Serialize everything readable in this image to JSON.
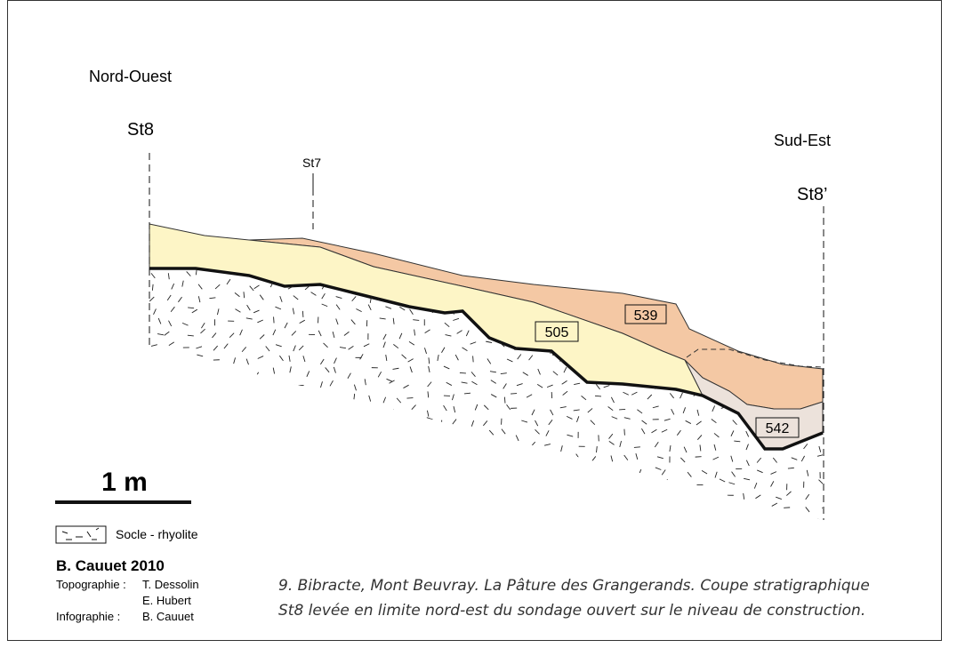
{
  "orientation": {
    "left": "Nord-Ouest",
    "right": "Sud-Est"
  },
  "stations": {
    "left": "St8",
    "middle": "St7",
    "right": "St8’"
  },
  "layers": {
    "l505": "505",
    "l539": "539",
    "l542": "542"
  },
  "scale": "1 m",
  "legend": {
    "label": "Socle - rhyolite"
  },
  "credits": {
    "author": "B. Cauuet 2010",
    "lines": [
      {
        "role": "Topographie :",
        "name": "T. Dessolin"
      },
      {
        "name": "E. Hubert"
      },
      {
        "role": "Infographie :",
        "name": "B. Cauuet"
      }
    ]
  },
  "caption": [
    "9. Bibracte, Mont Beuvray. La Pâture des Grangerands. Coupe stratigraphique",
    "St8 levée en limite nord-est du sondage ouvert sur le niveau de construction."
  ]
}
